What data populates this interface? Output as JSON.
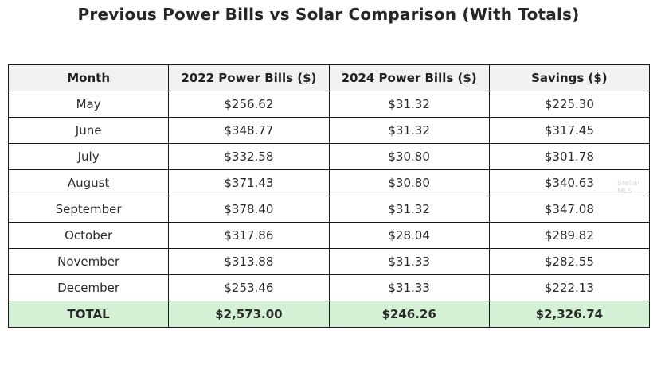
{
  "chart_data": {
    "type": "table",
    "title": "Previous Power Bills vs Solar Comparison (With Totals)",
    "columns": [
      "Month",
      "2022 Power Bills ($)",
      "2024 Power Bills ($)",
      "Savings ($)"
    ],
    "rows": [
      [
        "May",
        "$256.62",
        "$31.32",
        "$225.30"
      ],
      [
        "June",
        "$348.77",
        "$31.32",
        "$317.45"
      ],
      [
        "July",
        "$332.58",
        "$30.80",
        "$301.78"
      ],
      [
        "August",
        "$371.43",
        "$30.80",
        "$340.63"
      ],
      [
        "September",
        "$378.40",
        "$31.32",
        "$347.08"
      ],
      [
        "October",
        "$317.86",
        "$28.04",
        "$289.82"
      ],
      [
        "November",
        "$313.88",
        "$31.33",
        "$282.55"
      ],
      [
        "December",
        "$253.46",
        "$31.33",
        "$222.13"
      ]
    ],
    "total": [
      "TOTAL",
      "$2,573.00",
      "$246.26",
      "$2,326.74"
    ]
  },
  "colors": {
    "header_bg": "#f2f2f2",
    "total_bg": "#d5f1d5",
    "border": "#1a1a1a"
  },
  "watermark": "Stellar MLS"
}
